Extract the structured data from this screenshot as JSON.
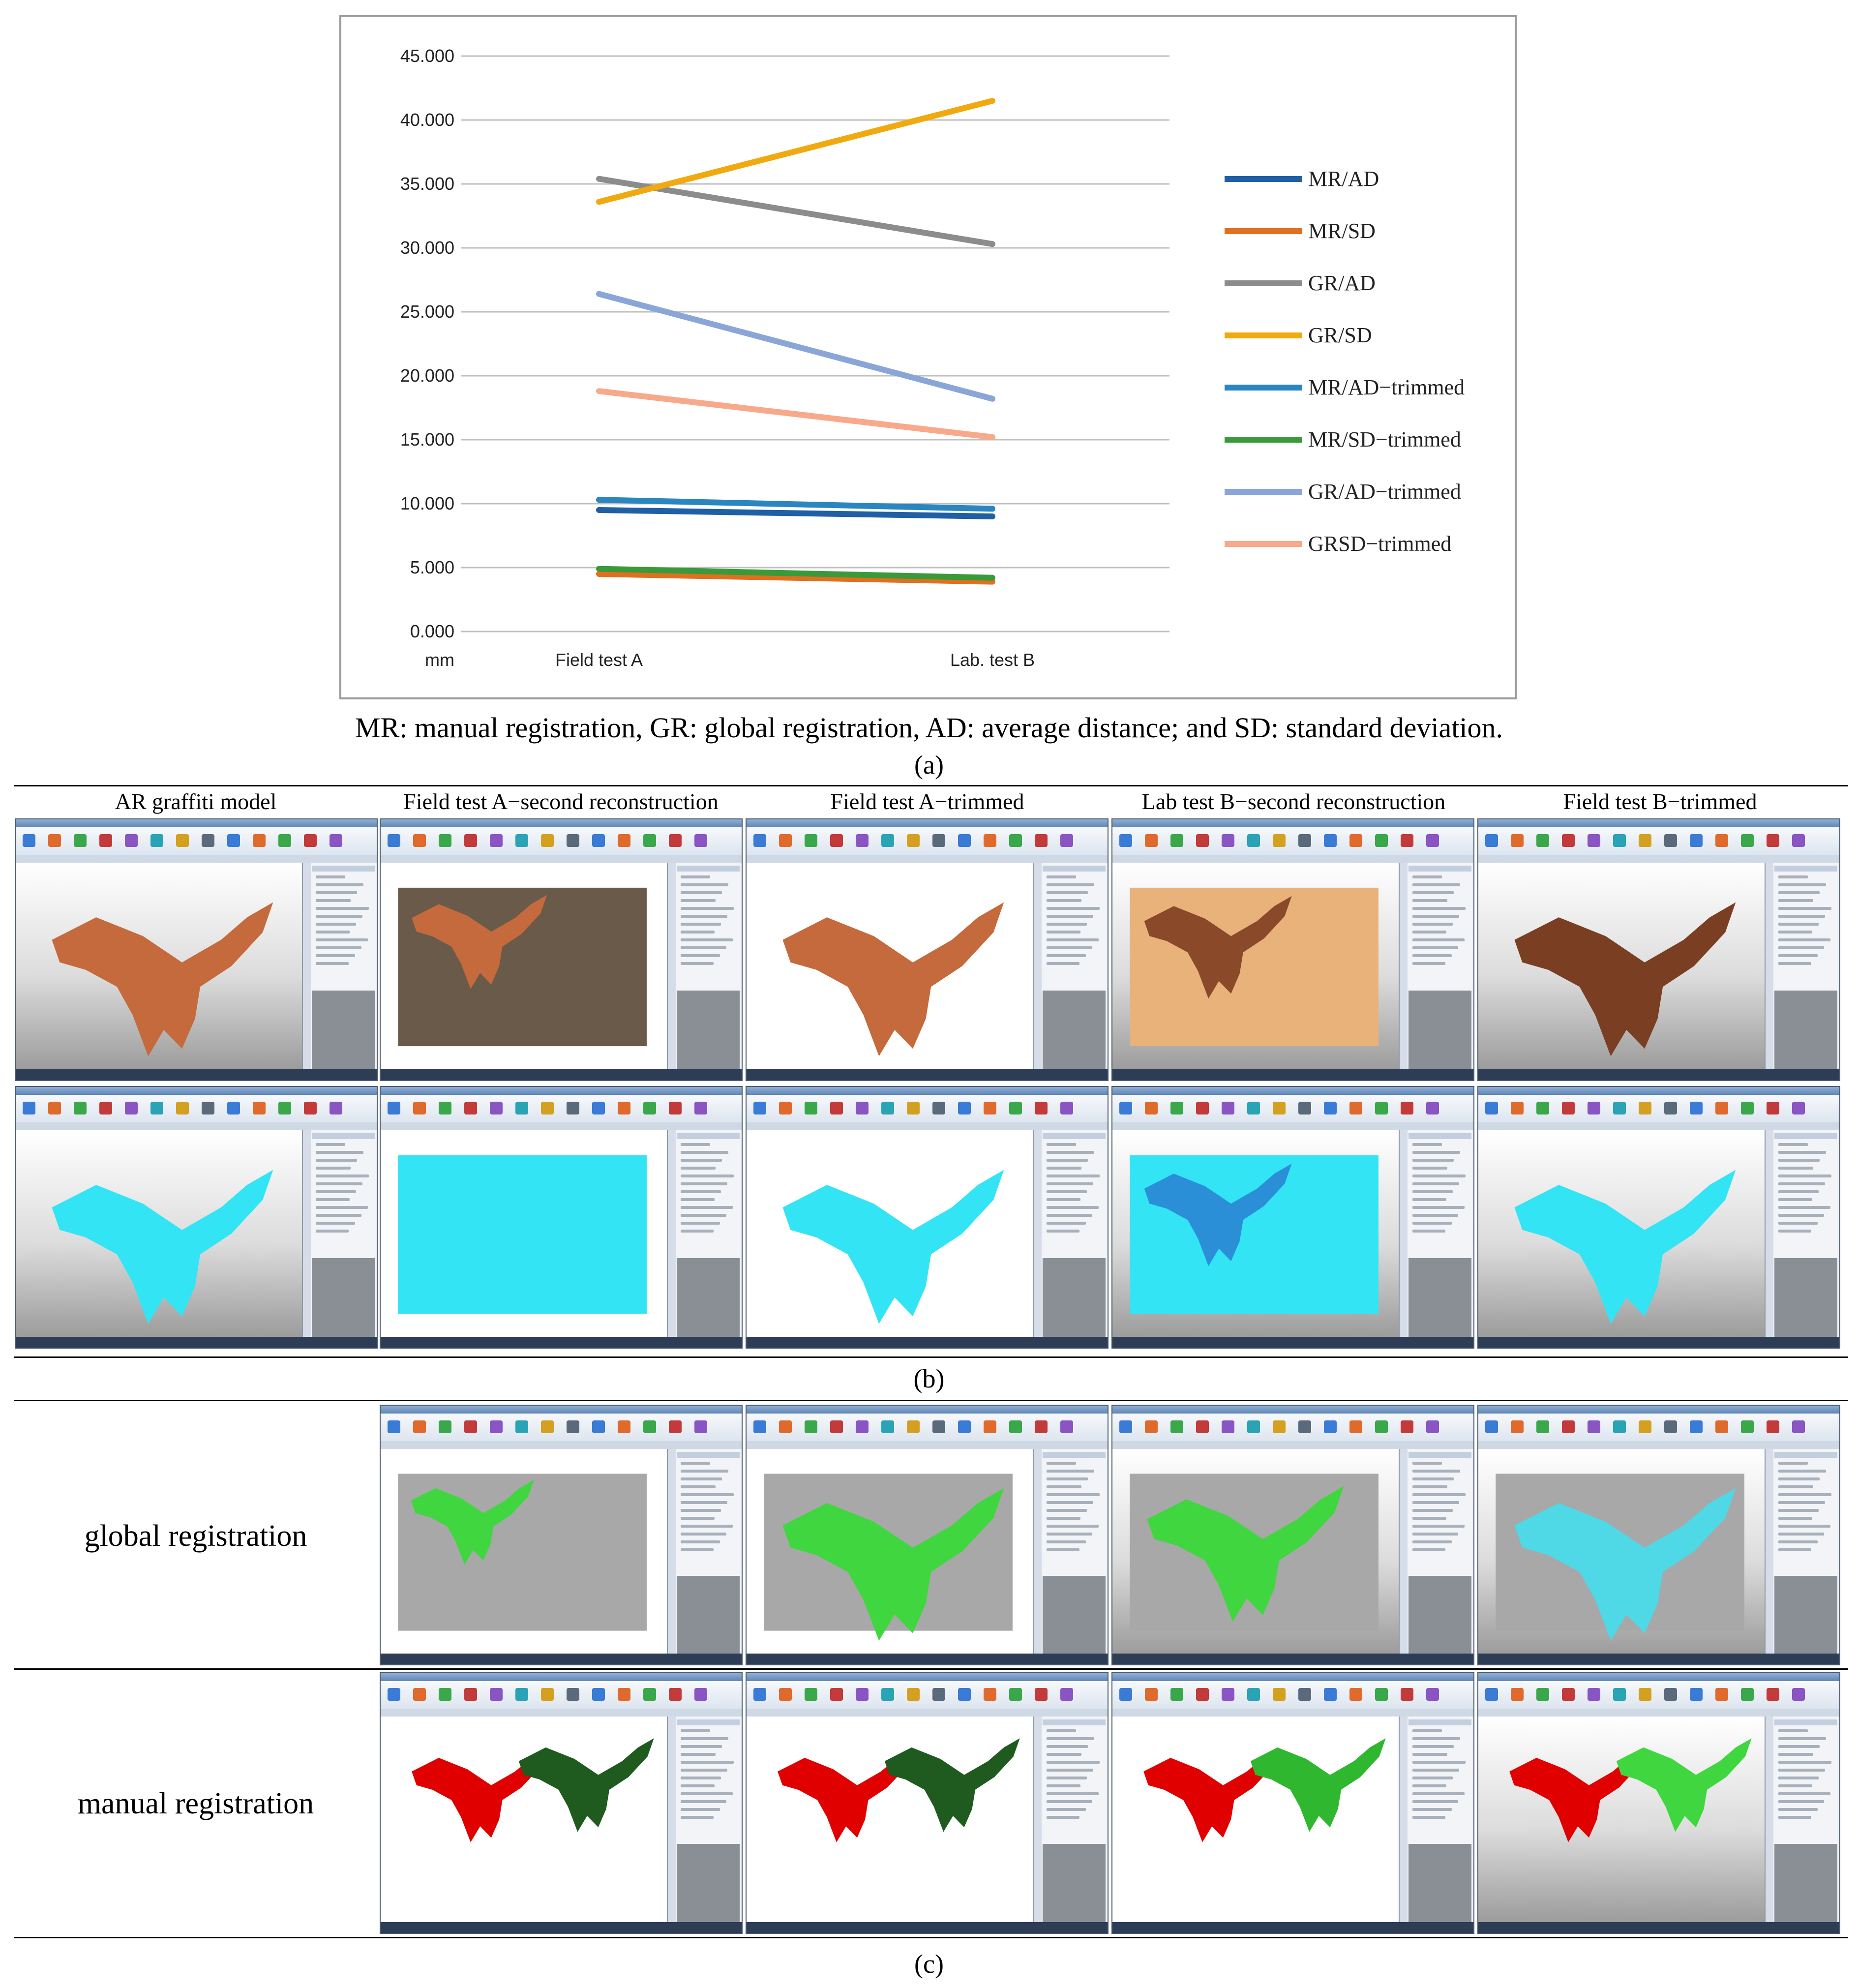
{
  "chart_data": {
    "type": "line",
    "categories": [
      "Field test A",
      "Lab. test B"
    ],
    "unit_label": "mm",
    "ylim": [
      0,
      45
    ],
    "yticks": [
      "0.000",
      "5.000",
      "10.000",
      "15.000",
      "20.000",
      "25.000",
      "30.000",
      "35.000",
      "40.000",
      "45.000"
    ],
    "grid": true,
    "legend_position": "right",
    "series": [
      {
        "name": "MR/AD",
        "color": "#1f5fa6",
        "values": [
          9.5,
          9.0
        ]
      },
      {
        "name": "MR/SD",
        "color": "#e07020",
        "values": [
          4.5,
          3.9
        ]
      },
      {
        "name": "GR/AD",
        "color": "#8c8c8c",
        "values": [
          35.4,
          30.3
        ]
      },
      {
        "name": "GR/SD",
        "color": "#f0aa10",
        "values": [
          33.6,
          41.5
        ]
      },
      {
        "name": "MR/AD−trimmed",
        "color": "#2a86c0",
        "values": [
          10.3,
          9.6
        ]
      },
      {
        "name": "MR/SD−trimmed",
        "color": "#3a9a3a",
        "values": [
          4.9,
          4.2
        ]
      },
      {
        "name": "GR/AD−trimmed",
        "color": "#8aa6d8",
        "values": [
          26.4,
          18.2
        ]
      },
      {
        "name": "GRSD−trimmed",
        "color": "#f7a98a",
        "values": [
          18.8,
          15.2
        ]
      }
    ]
  },
  "caption": "MR: manual registration, GR: global registration, AD: average distance; and SD: standard deviation.",
  "panel_labels": {
    "a": "(a)",
    "b": "(b)",
    "c": "(c)"
  },
  "panel_b": {
    "columns": [
      "AR graffiti model",
      "Field test A−second reconstruction",
      "Field test A−trimmed",
      "Lab test B−second reconstruction",
      "Field test B−trimmed"
    ]
  },
  "panel_c": {
    "rows": [
      "global registration",
      "manual registration"
    ]
  },
  "colors": {
    "grid": "#bfbfbf",
    "axis_text": "#222222",
    "model_orange": "#c46a3c",
    "mesh_cyan": "#33e4f4",
    "deviation_green": "#3fd63f",
    "manual_red": "#e00000",
    "manual_dark_green": "#1f5a1f"
  }
}
